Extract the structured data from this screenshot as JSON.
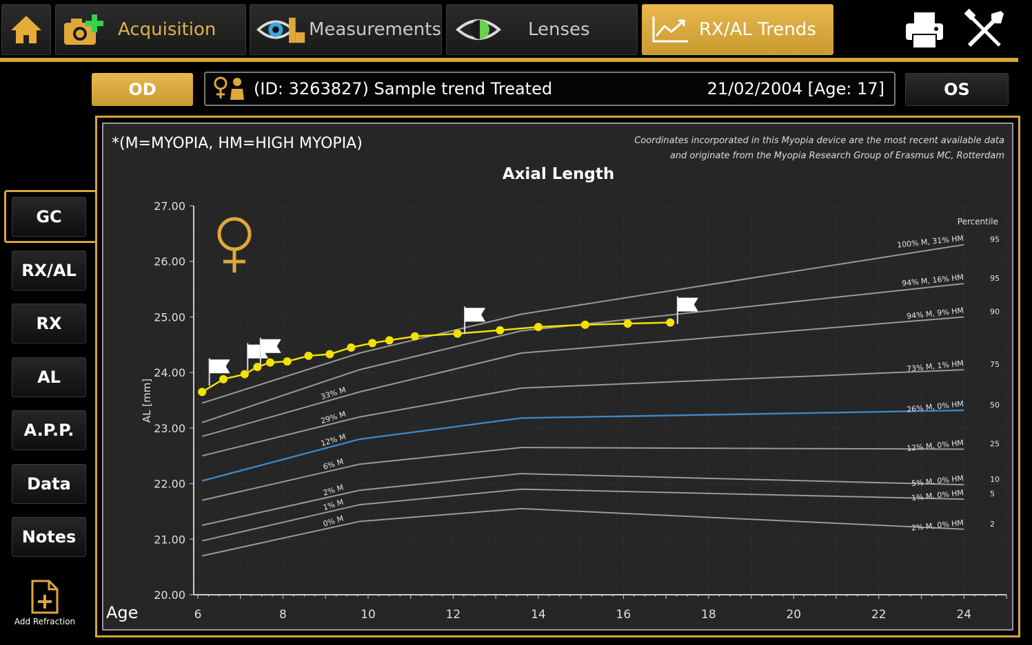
{
  "toolbar": {
    "tabs": [
      {
        "label": "Acquisition"
      },
      {
        "label": "Measurements"
      },
      {
        "label": "Lenses"
      },
      {
        "label": "RX/AL Trends"
      }
    ]
  },
  "patient": {
    "left_eye_button": "OD",
    "right_eye_button": "OS",
    "name": "(ID: 3263827) Sample trend Treated",
    "dob_age": "21/02/2004 [Age: 17]"
  },
  "sidebar": {
    "items": [
      "GC",
      "RX/AL",
      "RX",
      "AL",
      "A.P.P.",
      "Data",
      "Notes"
    ],
    "add_refraction": "Add Refraction"
  },
  "chart_header": {
    "legend_note": "*(M=MYOPIA, HM=HIGH MYOPIA)",
    "credit_line1": "Coordinates incorporated in this Myopia device are the most recent available data",
    "credit_line2": "and  originate from the Myopia Research Group of Erasmus MC, Rotterdam",
    "x_axis_caption": "Age",
    "percentile_header": "Percentile"
  },
  "colors": {
    "accent": "#d6a63d",
    "patient_series": "#f2e200",
    "highlight_curve": "#3f86c6",
    "reference_curve": "#9a9a9a"
  },
  "chart_data": {
    "type": "line",
    "title": "Axial Length",
    "xlabel": "Age",
    "ylabel": "AL [mm]",
    "xlim": [
      6,
      25
    ],
    "ylim": [
      20,
      27
    ],
    "xticks": [
      6,
      8,
      10,
      12,
      14,
      16,
      18,
      20,
      22,
      24
    ],
    "yticks": [
      "20.00",
      "21.00",
      "22.00",
      "23.00",
      "24.00",
      "25.00",
      "26.00",
      "27.00"
    ],
    "grid": true,
    "reference_curves": [
      {
        "percentile": "95",
        "right_label": "100% M, 31% HM",
        "left_label": "",
        "x": [
          6.1,
          9.8,
          13.6,
          24
        ],
        "y": [
          23.45,
          24.35,
          25.05,
          26.3
        ]
      },
      {
        "percentile": "95",
        "right_label": "94% M, 16% HM",
        "left_label": "",
        "x": [
          6.1,
          9.8,
          13.6,
          24
        ],
        "y": [
          23.1,
          24.05,
          24.75,
          25.6
        ]
      },
      {
        "percentile": "90",
        "right_label": "94% M, 9% HM",
        "left_label": "33% M",
        "x": [
          6.1,
          9.8,
          13.6,
          24
        ],
        "y": [
          22.85,
          23.65,
          24.35,
          25.0
        ]
      },
      {
        "percentile": "75",
        "right_label": "73% M, 1% HM",
        "left_label": "29% M",
        "x": [
          6.1,
          9.8,
          13.6,
          24
        ],
        "y": [
          22.5,
          23.2,
          23.72,
          24.05
        ]
      },
      {
        "percentile": "50",
        "right_label": "26% M, 0% HM",
        "left_label": "12% M",
        "x": [
          6.1,
          9.8,
          13.6,
          24
        ],
        "y": [
          22.05,
          22.8,
          23.18,
          23.32
        ],
        "highlight": true
      },
      {
        "percentile": "25",
        "right_label": "12% M, 0% HM",
        "left_label": "6% M",
        "x": [
          6.1,
          9.8,
          13.6,
          24
        ],
        "y": [
          21.7,
          22.35,
          22.65,
          22.62
        ]
      },
      {
        "percentile": "10",
        "right_label": "5% M, 0% HM",
        "left_label": "2% M",
        "x": [
          6.1,
          9.8,
          13.6,
          24
        ],
        "y": [
          21.25,
          21.88,
          22.18,
          21.98
        ]
      },
      {
        "percentile": "5",
        "right_label": "1% M, 0% HM",
        "left_label": "1% M",
        "x": [
          6.1,
          9.8,
          13.6,
          24
        ],
        "y": [
          20.97,
          21.62,
          21.9,
          21.72
        ]
      },
      {
        "percentile": "2",
        "right_label": "2% M, 0% HM",
        "left_label": "0% M",
        "x": [
          6.1,
          9.8,
          13.6,
          24
        ],
        "y": [
          20.7,
          21.32,
          21.55,
          21.18
        ]
      }
    ],
    "patient_series": {
      "x": [
        6.1,
        6.6,
        7.1,
        7.4,
        7.7,
        8.1,
        8.6,
        9.1,
        9.6,
        10.1,
        10.5,
        11.1,
        12.1,
        13.1,
        14.0,
        15.1,
        16.1,
        17.1
      ],
      "y": [
        23.65,
        23.88,
        23.97,
        24.1,
        24.18,
        24.2,
        24.3,
        24.33,
        24.45,
        24.53,
        24.58,
        24.65,
        24.7,
        24.76,
        24.82,
        24.86,
        24.88,
        24.9
      ],
      "flags_at_x": [
        6.4,
        7.3,
        7.6,
        12.4,
        17.4
      ]
    }
  }
}
